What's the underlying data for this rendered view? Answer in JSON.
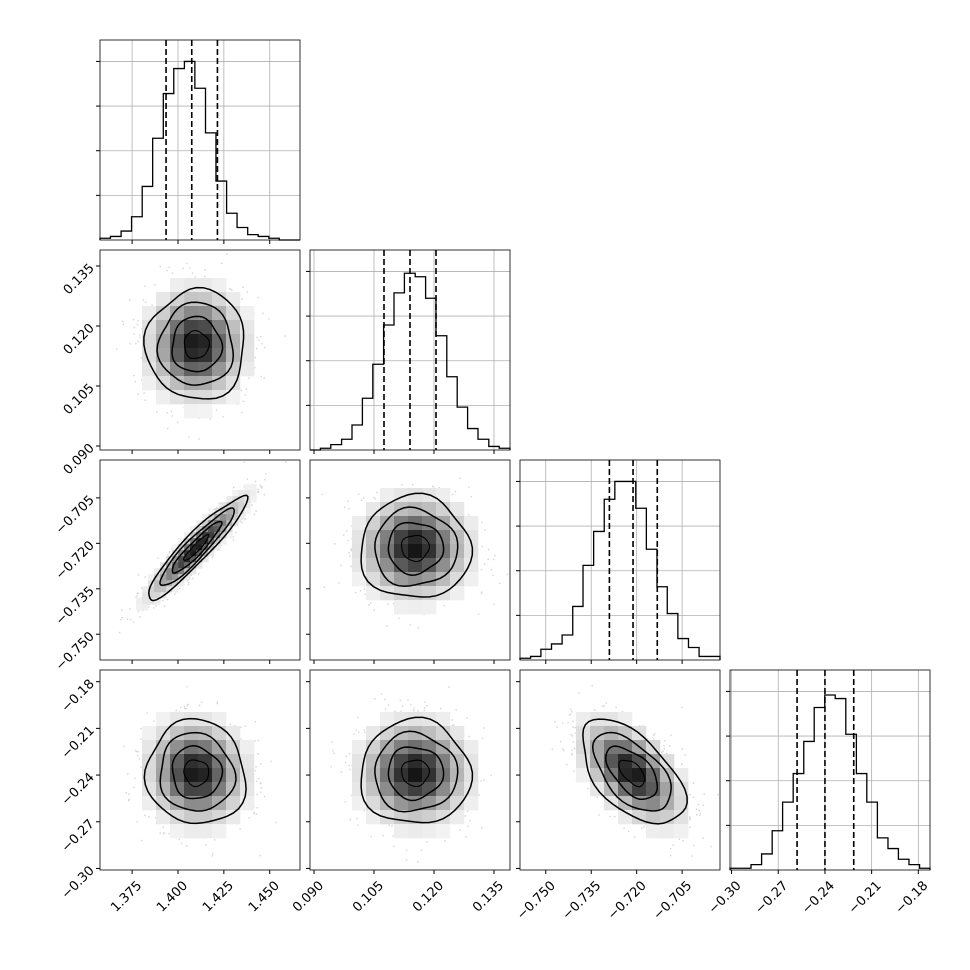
{
  "chart_data": {
    "type": "corner",
    "grid": true,
    "colors": {
      "line": "#000000",
      "scatter": "#808080",
      "grid": "#b0b0b0",
      "background": "#ffffff"
    },
    "parameters": [
      {
        "ticks": [
          1.375,
          1.4,
          1.425,
          1.45
        ],
        "tick_labels": [
          "1.375",
          "1.400",
          "1.425",
          "1.450"
        ],
        "range": [
          1.3575,
          1.4665
        ],
        "quantiles": [
          1.3935,
          1.4075,
          1.4215
        ]
      },
      {
        "ticks": [
          0.09,
          0.105,
          0.12,
          0.135
        ],
        "tick_labels": [
          "0.090",
          "0.105",
          "0.120",
          "0.135"
        ],
        "range": [
          0.089,
          0.139
        ],
        "quantiles": [
          0.1075,
          0.114,
          0.1205
        ]
      },
      {
        "ticks": [
          -0.75,
          -0.735,
          -0.72,
          -0.705
        ],
        "tick_labels": [
          "−0.750",
          "−0.735",
          "−0.720",
          "−0.705"
        ],
        "range": [
          -0.7585,
          -0.6925
        ],
        "quantiles": [
          -0.729,
          -0.7212,
          -0.7132
        ]
      },
      {
        "ticks": [
          -0.3,
          -0.27,
          -0.24,
          -0.21,
          -0.18
        ],
        "tick_labels": [
          "−0.30",
          "−0.27",
          "−0.24",
          "−0.21",
          "−0.18"
        ],
        "range": [
          -0.301,
          -0.1725
        ],
        "quantiles": [
          -0.2579,
          -0.24,
          -0.2215
        ]
      }
    ],
    "histograms": [
      {
        "bin_edges": [
          1.3575,
          1.3632,
          1.369,
          1.3747,
          1.3805,
          1.3862,
          1.392,
          1.3977,
          1.4035,
          1.4092,
          1.415,
          1.4207,
          1.4265,
          1.4322,
          1.438,
          1.4437,
          1.4495,
          1.4552,
          1.461,
          1.4665
        ],
        "counts": [
          1,
          2,
          5,
          13,
          30,
          57,
          82,
          96,
          100,
          85,
          60,
          33,
          15,
          7,
          3,
          2,
          1,
          0,
          0
        ]
      },
      {
        "bin_edges": [
          0.089,
          0.0916,
          0.0942,
          0.0969,
          0.0995,
          0.1021,
          0.1047,
          0.1074,
          0.11,
          0.1126,
          0.1153,
          0.1179,
          0.1205,
          0.1232,
          0.1258,
          0.1284,
          0.131,
          0.1337,
          0.1363,
          0.139
        ],
        "counts": [
          0,
          1,
          3,
          6,
          14,
          29,
          48,
          70,
          88,
          99,
          97,
          85,
          64,
          41,
          24,
          12,
          6,
          2,
          1
        ]
      },
      {
        "bin_edges": [
          -0.7585,
          -0.755,
          -0.7516,
          -0.7481,
          -0.7446,
          -0.7411,
          -0.7377,
          -0.7342,
          -0.7307,
          -0.7272,
          -0.7238,
          -0.7203,
          -0.7168,
          -0.7133,
          -0.7099,
          -0.7064,
          -0.7029,
          -0.6994,
          -0.696,
          -0.6925
        ],
        "counts": [
          1,
          2,
          6,
          9,
          14,
          30,
          53,
          72,
          90,
          100,
          100,
          85,
          62,
          41,
          26,
          12,
          7,
          2,
          2
        ]
      },
      {
        "bin_edges": [
          -0.301,
          -0.2942,
          -0.2875,
          -0.2807,
          -0.2739,
          -0.2672,
          -0.2604,
          -0.2536,
          -0.2469,
          -0.2401,
          -0.2334,
          -0.2266,
          -0.2198,
          -0.2131,
          -0.2063,
          -0.1995,
          -0.1928,
          -0.186,
          -0.1792,
          -0.1725
        ],
        "counts": [
          1,
          1,
          3,
          9,
          22,
          38,
          54,
          72,
          91,
          98,
          96,
          76,
          54,
          38,
          18,
          12,
          6,
          3,
          1
        ]
      }
    ],
    "pairs": [
      {
        "x": 0,
        "y": 1,
        "mean": [
          1.41,
          0.1153
        ],
        "sd": [
          0.0135,
          0.0069
        ],
        "rho": 0.0
      },
      {
        "x": 0,
        "y": 2,
        "mean": [
          1.41,
          -0.7215
        ],
        "sd": [
          0.0135,
          0.0085
        ],
        "rho": 0.93
      },
      {
        "x": 1,
        "y": 2,
        "mean": [
          0.1153,
          -0.7215
        ],
        "sd": [
          0.0069,
          0.0085
        ],
        "rho": 0.0
      },
      {
        "x": 0,
        "y": 3,
        "mean": [
          1.41,
          -0.2385
        ],
        "sd": [
          0.0135,
          0.0168
        ],
        "rho": -0.05
      },
      {
        "x": 1,
        "y": 3,
        "mean": [
          0.1153,
          -0.2385
        ],
        "sd": [
          0.0069,
          0.0168
        ],
        "rho": 0.0
      },
      {
        "x": 2,
        "y": 3,
        "mean": [
          -0.7215,
          -0.2385
        ],
        "sd": [
          0.0085,
          0.0168
        ],
        "rho": -0.55
      }
    ]
  }
}
